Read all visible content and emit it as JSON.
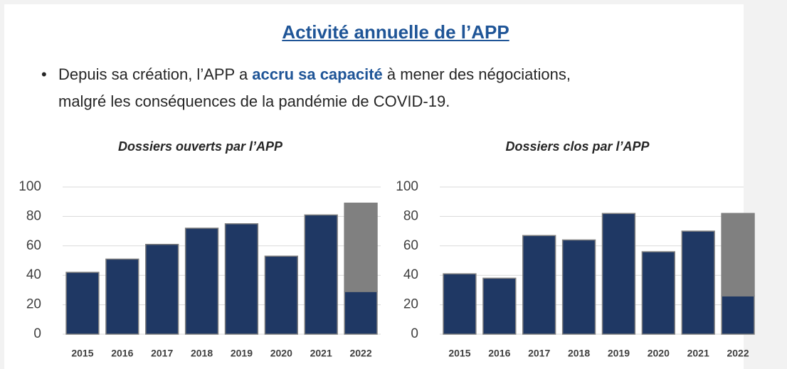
{
  "title": "Activité annuelle de l’APP",
  "bullet": [
    "Depuis sa création, l’APP a ",
    "accru sa capacité",
    " à mener des négociations,",
    "malgré les conséquences de la pandémie de COVID-19."
  ],
  "chart_data": [
    {
      "type": "bar",
      "stacked": true,
      "title": "Dossiers ouverts par l’APP",
      "categories": [
        "2015",
        "2016",
        "2017",
        "2018",
        "2019",
        "2020",
        "2021",
        "2022"
      ],
      "series": [
        {
          "color": "#1f3864",
          "values": [
            42,
            51,
            61,
            72,
            75,
            53,
            81,
            29
          ]
        },
        {
          "color": "#808080",
          "values": [
            null,
            null,
            null,
            null,
            null,
            null,
            null,
            60
          ]
        }
      ],
      "ylim": [
        0,
        100
      ],
      "yticks": [
        0,
        20,
        40,
        60,
        80,
        100
      ],
      "grid": true
    },
    {
      "type": "bar",
      "stacked": true,
      "title": "Dossiers clos par l’APP",
      "categories": [
        "2015",
        "2016",
        "2017",
        "2018",
        "2019",
        "2020",
        "2021",
        "2022"
      ],
      "series": [
        {
          "color": "#1f3864",
          "values": [
            41,
            38,
            67,
            64,
            82,
            56,
            70,
            26
          ]
        },
        {
          "color": "#808080",
          "values": [
            null,
            null,
            null,
            null,
            null,
            null,
            null,
            56
          ]
        }
      ],
      "ylim": [
        0,
        100
      ],
      "yticks": [
        0,
        20,
        40,
        60,
        80,
        100
      ],
      "grid": true
    }
  ]
}
